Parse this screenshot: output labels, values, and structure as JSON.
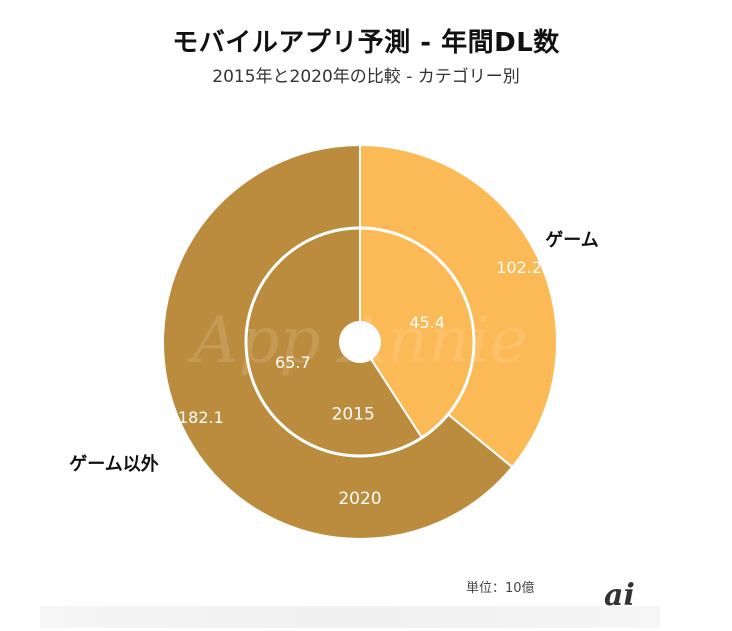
{
  "header": {
    "title": "モバイルアプリ予測 - 年間DL数",
    "subtitle": "2015年と2020年の比較 - カテゴリー別"
  },
  "footer": {
    "unit": "単位：10億",
    "logo": "ai"
  },
  "watermark": "App Annie",
  "colors": {
    "games": "#FBBA55",
    "non_games": "#BC8C3E",
    "separator": "#ffffff"
  },
  "chart_data": {
    "type": "pie",
    "title": "モバイルアプリ予測 - 年間DL数",
    "subtitle": "2015年と2020年の比較 - カテゴリー別",
    "categories": [
      "ゲーム",
      "ゲーム以外"
    ],
    "rings": [
      {
        "name": "2015",
        "position": "inner",
        "values": [
          45.4,
          65.7
        ]
      },
      {
        "name": "2020",
        "position": "outer",
        "values": [
          102.2,
          182.1
        ]
      }
    ],
    "legend_position": "labels-beside-outer-ring"
  }
}
